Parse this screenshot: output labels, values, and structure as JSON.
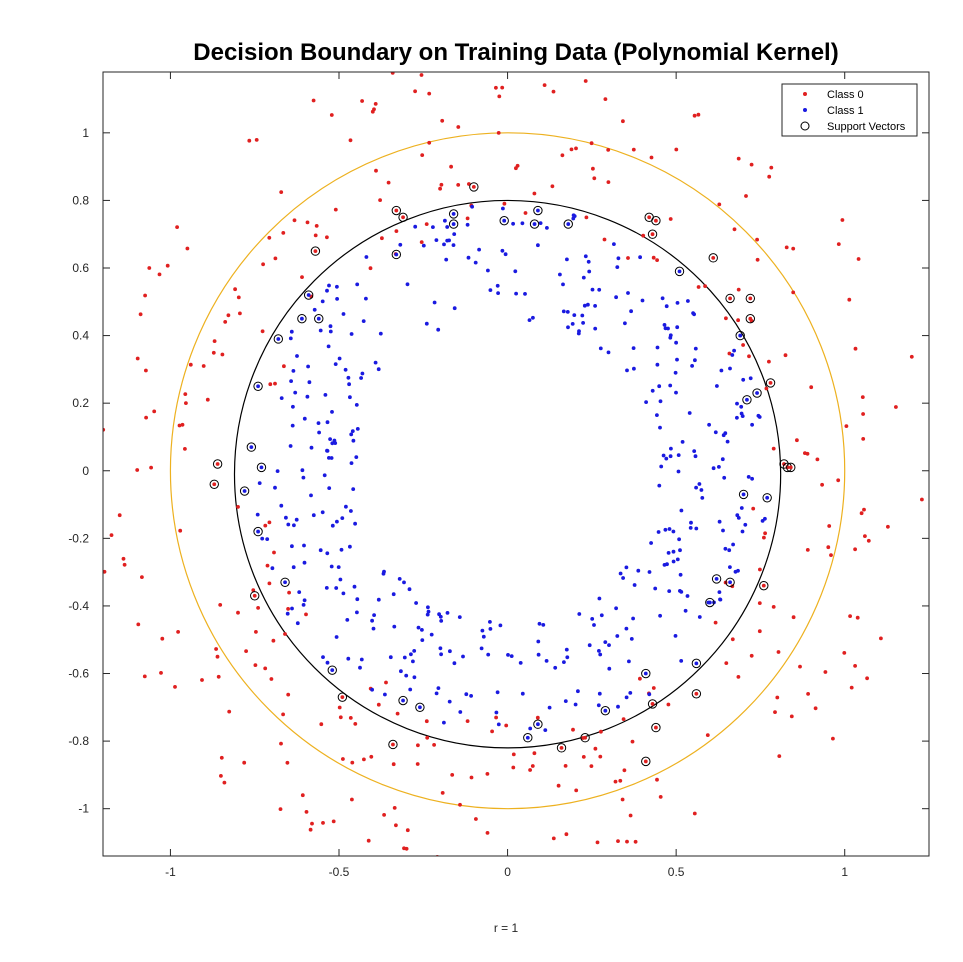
{
  "chart_data": {
    "type": "scatter",
    "title": "Decision Boundary on Training Data (Polynomial Kernel)",
    "xlabel": "r = 1",
    "ylabel": "",
    "xlim": [
      -1.2,
      1.25
    ],
    "ylim": [
      -1.14,
      1.18
    ],
    "xticks": [
      -1,
      -0.5,
      0,
      0.5,
      1
    ],
    "xtick_labels": [
      "-1",
      "-0.5",
      "0",
      "0.5",
      "1"
    ],
    "yticks": [
      -1,
      -0.8,
      -0.6,
      -0.4,
      -0.2,
      0,
      0.2,
      0.4,
      0.6,
      0.8,
      1
    ],
    "ytick_labels": [
      "-1",
      "-0.8",
      "-0.6",
      "-0.4",
      "-0.2",
      "0",
      "0.2",
      "0.4",
      "0.6",
      "0.8",
      "1"
    ],
    "grid": false,
    "legend_position": "top-right",
    "legend": [
      "Class 0",
      "Class 1",
      "Support Vectors"
    ],
    "colors": {
      "class0": "#e02020",
      "class1": "#1a1ae0",
      "support_vector_edge": "#000000",
      "decision_boundary": "#000000",
      "reference_circle": "#edb120"
    },
    "curves": [
      {
        "kind": "circle",
        "role": "decision boundary",
        "center": [
          0,
          -0.01
        ],
        "radius": 0.81
      },
      {
        "kind": "circle",
        "role": "r = 1 circle",
        "center": [
          0,
          0
        ],
        "radius": 1.0
      }
    ],
    "series": [
      {
        "name": "Class 0",
        "marker": "dot",
        "distribution": "ring",
        "count": 340,
        "r_range": [
          0.72,
          1.25
        ]
      },
      {
        "name": "Class 1",
        "marker": "dot",
        "distribution": "ring",
        "count": 420,
        "r_range": [
          0.45,
          0.79
        ]
      },
      {
        "name": "Support Vectors",
        "marker": "open-circle",
        "points": [
          [
            -0.33,
            0.77
          ],
          [
            -0.31,
            0.75
          ],
          [
            -0.16,
            0.73
          ],
          [
            -0.1,
            0.84
          ],
          [
            0.09,
            0.77
          ],
          [
            0.42,
            0.75
          ],
          [
            0.43,
            0.7
          ],
          [
            -0.57,
            0.65
          ],
          [
            -0.61,
            0.45
          ],
          [
            0.61,
            0.63
          ],
          [
            0.72,
            0.51
          ],
          [
            0.72,
            0.45
          ],
          [
            0.78,
            0.26
          ],
          [
            0.82,
            0.02
          ],
          [
            0.83,
            0.01
          ],
          [
            0.84,
            0.01
          ],
          [
            -0.76,
            0.07
          ],
          [
            -0.86,
            0.02
          ],
          [
            -0.87,
            -0.04
          ],
          [
            -0.78,
            -0.06
          ],
          [
            -0.75,
            -0.37
          ],
          [
            0.76,
            -0.34
          ],
          [
            0.56,
            -0.57
          ],
          [
            0.56,
            -0.66
          ],
          [
            -0.49,
            -0.67
          ],
          [
            0.44,
            -0.76
          ],
          [
            0.06,
            -0.79
          ],
          [
            0.16,
            -0.82
          ],
          [
            0.23,
            -0.79
          ],
          [
            -0.34,
            -0.81
          ],
          [
            -0.16,
            0.76
          ],
          [
            -0.01,
            0.74
          ],
          [
            0.08,
            0.73
          ],
          [
            0.18,
            0.73
          ],
          [
            0.44,
            0.74
          ],
          [
            -0.33,
            0.64
          ],
          [
            -0.59,
            0.52
          ],
          [
            -0.56,
            0.45
          ],
          [
            -0.68,
            0.39
          ],
          [
            0.51,
            0.59
          ],
          [
            0.66,
            0.51
          ],
          [
            0.69,
            0.4
          ],
          [
            -0.74,
            0.25
          ],
          [
            0.71,
            0.21
          ],
          [
            0.74,
            0.23
          ],
          [
            -0.73,
            0.01
          ],
          [
            0.7,
            -0.07
          ],
          [
            0.77,
            -0.08
          ],
          [
            -0.74,
            -0.18
          ],
          [
            -0.66,
            -0.33
          ],
          [
            0.62,
            -0.32
          ],
          [
            0.66,
            -0.33
          ],
          [
            0.6,
            -0.39
          ],
          [
            -0.52,
            -0.59
          ],
          [
            -0.31,
            -0.68
          ],
          [
            -0.26,
            -0.7
          ],
          [
            0.41,
            -0.6
          ],
          [
            0.43,
            -0.69
          ],
          [
            0.29,
            -0.71
          ],
          [
            0.09,
            -0.75
          ],
          [
            0.41,
            -0.86
          ]
        ]
      }
    ]
  }
}
